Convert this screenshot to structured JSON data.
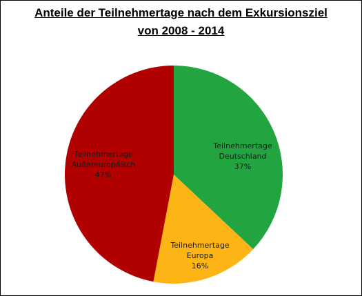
{
  "chart_data": {
    "type": "pie",
    "title": "Anteile der Teilnehmertage nach dem Exkursionsziel",
    "subtitle": "von 2008 - 2014",
    "slices": [
      {
        "label_lines": [
          "Teilnehmertage",
          "Deutschland"
        ],
        "value": 37,
        "value_text": "37%",
        "color": "#22a540"
      },
      {
        "label_lines": [
          "Teilnehmertage",
          "Europa"
        ],
        "value": 16,
        "value_text": "16%",
        "color": "#fdb515"
      },
      {
        "label_lines": [
          "Teilnehmertage",
          "Außereuropäisch"
        ],
        "value": 47,
        "value_text": "47%",
        "color": "#b00000"
      }
    ],
    "start_angle_deg": 0,
    "direction": "clockwise",
    "legend": "none"
  }
}
